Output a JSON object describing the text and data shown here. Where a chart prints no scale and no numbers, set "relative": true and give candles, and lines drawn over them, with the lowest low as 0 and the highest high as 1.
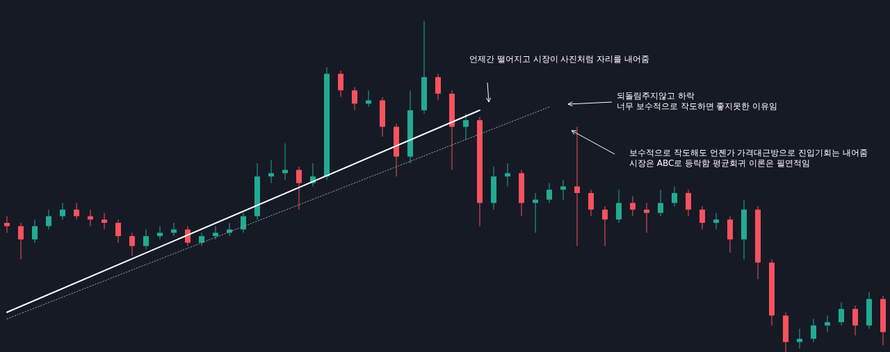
{
  "chart_data": {
    "type": "candlestick",
    "relative": true,
    "categories": [
      null,
      null,
      null,
      null,
      null,
      null,
      null,
      null,
      null,
      null,
      null,
      null,
      null,
      null,
      null,
      null,
      null,
      null,
      null,
      null,
      null,
      null,
      null,
      null,
      null,
      null,
      null,
      null,
      null,
      null,
      null,
      null,
      null,
      null,
      null,
      null,
      null,
      null,
      null,
      null,
      null,
      null,
      null,
      null,
      null,
      null,
      null,
      null,
      null,
      null,
      null,
      null,
      null,
      null,
      null,
      null,
      null,
      null,
      null,
      null,
      null,
      null,
      null,
      null
    ],
    "ohlc": [
      [
        0.39,
        0.41,
        0.36,
        0.38
      ],
      [
        0.38,
        0.39,
        0.28,
        0.34
      ],
      [
        0.34,
        0.4,
        0.33,
        0.38
      ],
      [
        0.38,
        0.43,
        0.37,
        0.41
      ],
      [
        0.41,
        0.45,
        0.4,
        0.43
      ],
      [
        0.43,
        0.45,
        0.4,
        0.41
      ],
      [
        0.41,
        0.43,
        0.38,
        0.4
      ],
      [
        0.4,
        0.42,
        0.37,
        0.39
      ],
      [
        0.39,
        0.4,
        0.33,
        0.35
      ],
      [
        0.35,
        0.36,
        0.29,
        0.32
      ],
      [
        0.32,
        0.37,
        0.31,
        0.35
      ],
      [
        0.35,
        0.38,
        0.34,
        0.36
      ],
      [
        0.36,
        0.39,
        0.35,
        0.37
      ],
      [
        0.37,
        0.38,
        0.32,
        0.33
      ],
      [
        0.33,
        0.36,
        0.32,
        0.35
      ],
      [
        0.35,
        0.38,
        0.34,
        0.36
      ],
      [
        0.36,
        0.39,
        0.35,
        0.37
      ],
      [
        0.37,
        0.42,
        0.36,
        0.41
      ],
      [
        0.41,
        0.57,
        0.4,
        0.53
      ],
      [
        0.53,
        0.58,
        0.51,
        0.54
      ],
      [
        0.54,
        0.63,
        0.52,
        0.55
      ],
      [
        0.55,
        0.56,
        0.43,
        0.51
      ],
      [
        0.51,
        0.57,
        0.5,
        0.53
      ],
      [
        0.53,
        0.86,
        0.52,
        0.84
      ],
      [
        0.84,
        0.85,
        0.77,
        0.79
      ],
      [
        0.79,
        0.8,
        0.73,
        0.75
      ],
      [
        0.75,
        0.79,
        0.74,
        0.76
      ],
      [
        0.76,
        0.77,
        0.65,
        0.68
      ],
      [
        0.68,
        0.69,
        0.53,
        0.59
      ],
      [
        0.59,
        0.79,
        0.57,
        0.73
      ],
      [
        0.73,
        1.0,
        0.72,
        0.83
      ],
      [
        0.83,
        0.84,
        0.76,
        0.78
      ],
      [
        0.78,
        0.79,
        0.55,
        0.68
      ],
      [
        0.68,
        0.72,
        0.64,
        0.7
      ],
      [
        0.7,
        0.71,
        0.38,
        0.45
      ],
      [
        0.45,
        0.56,
        0.43,
        0.53
      ],
      [
        0.53,
        0.57,
        0.5,
        0.54
      ],
      [
        0.54,
        0.55,
        0.41,
        0.45
      ],
      [
        0.45,
        0.48,
        0.36,
        0.46
      ],
      [
        0.46,
        0.51,
        0.45,
        0.49
      ],
      [
        0.49,
        0.52,
        0.46,
        0.5
      ],
      [
        0.5,
        0.68,
        0.32,
        0.48
      ],
      [
        0.48,
        0.49,
        0.41,
        0.43
      ],
      [
        0.43,
        0.44,
        0.32,
        0.4
      ],
      [
        0.4,
        0.49,
        0.39,
        0.45
      ],
      [
        0.45,
        0.47,
        0.41,
        0.43
      ],
      [
        0.43,
        0.45,
        0.36,
        0.42
      ],
      [
        0.42,
        0.49,
        0.41,
        0.45
      ],
      [
        0.45,
        0.5,
        0.44,
        0.48
      ],
      [
        0.48,
        0.49,
        0.41,
        0.43
      ],
      [
        0.43,
        0.44,
        0.37,
        0.39
      ],
      [
        0.39,
        0.42,
        0.37,
        0.4
      ],
      [
        0.4,
        0.41,
        0.3,
        0.34
      ],
      [
        0.34,
        0.46,
        0.28,
        0.43
      ],
      [
        0.43,
        0.44,
        0.22,
        0.27
      ],
      [
        0.27,
        0.28,
        0.08,
        0.11
      ],
      [
        0.11,
        0.12,
        0.0,
        0.03
      ],
      [
        0.03,
        0.07,
        0.01,
        0.04
      ],
      [
        0.04,
        0.1,
        0.03,
        0.08
      ],
      [
        0.08,
        0.11,
        0.06,
        0.09
      ],
      [
        0.09,
        0.15,
        0.08,
        0.13
      ],
      [
        0.13,
        0.14,
        0.05,
        0.08
      ],
      [
        0.08,
        0.18,
        0.07,
        0.16
      ],
      [
        0.16,
        0.17,
        0.02,
        0.06
      ]
    ],
    "colors": [
      "#f7525f",
      "#f7525f",
      "#22ab94",
      "#22ab94",
      "#22ab94",
      "#f7525f",
      "#f7525f",
      "#f7525f",
      "#f7525f",
      "#f7525f",
      "#22ab94",
      "#22ab94",
      "#22ab94",
      "#f7525f",
      "#22ab94",
      "#22ab94",
      "#22ab94",
      "#22ab94",
      "#22ab94",
      "#22ab94",
      "#22ab94",
      "#f7525f",
      "#22ab94",
      "#22ab94",
      "#f7525f",
      "#f7525f",
      "#22ab94",
      "#f7525f",
      "#f7525f",
      "#22ab94",
      "#22ab94",
      "#f7525f",
      "#f7525f",
      "#22ab94",
      "#f7525f",
      "#22ab94",
      "#22ab94",
      "#f7525f",
      "#22ab94",
      "#22ab94",
      "#22ab94",
      "#f7525f",
      "#f7525f",
      "#f7525f",
      "#22ab94",
      "#f7525f",
      "#f7525f",
      "#22ab94",
      "#22ab94",
      "#f7525f",
      "#f7525f",
      "#22ab94",
      "#f7525f",
      "#22ab94",
      "#f7525f",
      "#f7525f",
      "#f7525f",
      "#22ab94",
      "#22ab94",
      "#22ab94",
      "#22ab94",
      "#f7525f",
      "#22ab94",
      "#f7525f"
    ],
    "series": [
      {
        "type": "line",
        "values": [
          0.12,
          null,
          null,
          null,
          null,
          null,
          null,
          null,
          null,
          null,
          null,
          null,
          null,
          null,
          null,
          null,
          null,
          null,
          null,
          null,
          null,
          null,
          null,
          null,
          null,
          null,
          null,
          null,
          null,
          null,
          null,
          null,
          null,
          null,
          0.73,
          null,
          null,
          null,
          null,
          null,
          null,
          null,
          null,
          null,
          null,
          null,
          null,
          null,
          null,
          null,
          null,
          null,
          null,
          null,
          null,
          null,
          null,
          null,
          null,
          null,
          null,
          null,
          null,
          null
        ],
        "color": "#ffffff",
        "line_style": "solid"
      },
      {
        "type": "line",
        "values": [
          0.1,
          null,
          null,
          null,
          null,
          null,
          null,
          null,
          null,
          null,
          null,
          null,
          null,
          null,
          null,
          null,
          null,
          null,
          null,
          null,
          null,
          null,
          null,
          null,
          null,
          null,
          null,
          null,
          null,
          null,
          null,
          null,
          null,
          null,
          null,
          null,
          null,
          null,
          null,
          0.74,
          null,
          null,
          null,
          null,
          null,
          null,
          null,
          null,
          null,
          null,
          null,
          null,
          null,
          null,
          null,
          null,
          null,
          null,
          null,
          null,
          null,
          null,
          null,
          null
        ],
        "color": "#9aa0aa",
        "line_style": "dotted"
      }
    ],
    "annotations": [
      "언제간 떨어지고 시장이 사진처럼 자리를 내어줌",
      "되돌림주지않고 하락\n너무 보수적으로 작도하면 좋지못한 이유임",
      "보수적으로 작도해도 언젠가 가격대근방으로 진입기회는 내어줌\n시장은 ABC로 등락함 평균회귀 이론은 필연적임"
    ]
  }
}
